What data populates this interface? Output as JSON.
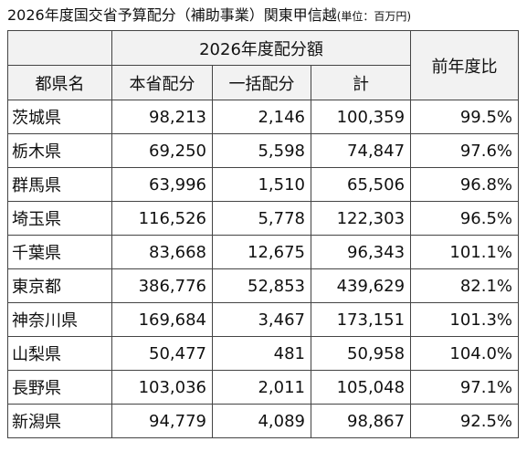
{
  "header": {
    "title": "2026年度国交省予算配分（補助事業）関東甲信越",
    "unit": "(単位：百万円)"
  },
  "table": {
    "group_header": "2026年度配分額",
    "columns": [
      "都県名",
      "本省配分",
      "一括配分",
      "計",
      "前年度比"
    ],
    "rows": [
      [
        "茨城県",
        "98,213",
        "2,146",
        "100,359",
        "99.5%"
      ],
      [
        "栃木県",
        "69,250",
        "5,598",
        "74,847",
        "97.6%"
      ],
      [
        "群馬県",
        "63,996",
        "1,510",
        "65,506",
        "96.8%"
      ],
      [
        "埼玉県",
        "116,526",
        "5,778",
        "122,303",
        "96.5%"
      ],
      [
        "千葉県",
        "83,668",
        "12,675",
        "96,343",
        "101.1%"
      ],
      [
        "東京都",
        "386,776",
        "52,853",
        "439,629",
        "82.1%"
      ],
      [
        "神奈川県",
        "169,684",
        "3,467",
        "173,151",
        "101.3%"
      ],
      [
        "山梨県",
        "50,477",
        "481",
        "50,958",
        "104.0%"
      ],
      [
        "長野県",
        "103,036",
        "2,011",
        "105,048",
        "97.1%"
      ],
      [
        "新潟県",
        "94,779",
        "4,089",
        "98,867",
        "92.5%"
      ]
    ]
  }
}
